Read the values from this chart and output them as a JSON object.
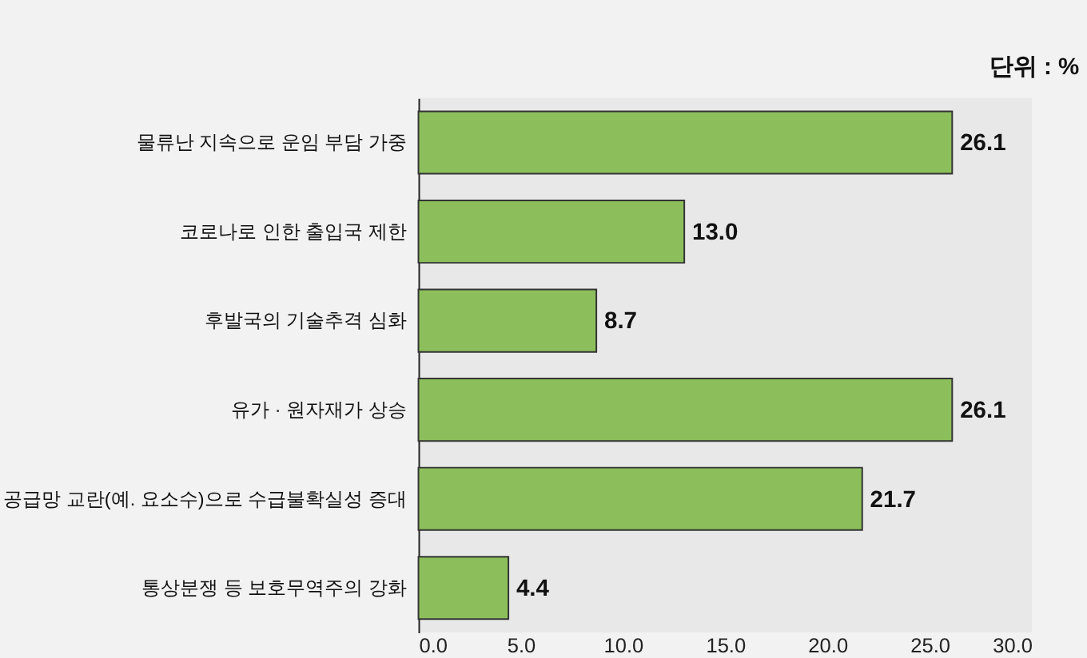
{
  "chart_data": {
    "type": "bar",
    "orientation": "horizontal",
    "categories": [
      "물류난 지속으로 운임 부담 가중",
      "코로나로 인한 출입국 제한",
      "후발국의 기술추격 심화",
      "유가 · 원자재가 상승",
      "공급망 교란(예. 요소수)으로 수급불확실성 증대",
      "통상분쟁 등 보호무역주의 강화"
    ],
    "values": [
      26.1,
      13.0,
      8.7,
      26.1,
      21.7,
      4.4
    ],
    "value_labels": [
      "26.1",
      "13.0",
      "8.7",
      "26.1",
      "21.7",
      "4.4"
    ],
    "color": "#8cbf5c",
    "xlim": [
      0,
      30
    ],
    "xticks": [
      {
        "value": 0,
        "label": "0.0"
      },
      {
        "value": 5,
        "label": "5.0"
      },
      {
        "value": 10,
        "label": "10.0"
      },
      {
        "value": 15,
        "label": "15.0"
      },
      {
        "value": 20,
        "label": "20.0"
      },
      {
        "value": 25,
        "label": "25.0"
      },
      {
        "value": 30,
        "label": "30.0"
      }
    ],
    "grid": false,
    "annotations": [
      "단위 : %"
    ]
  }
}
